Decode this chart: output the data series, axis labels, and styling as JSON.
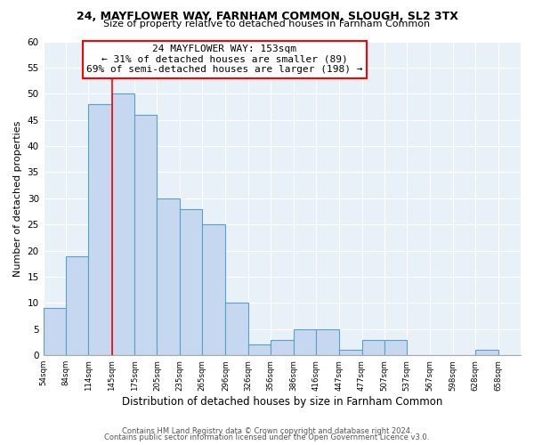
{
  "title1": "24, MAYFLOWER WAY, FARNHAM COMMON, SLOUGH, SL2 3TX",
  "title2": "Size of property relative to detached houses in Farnham Common",
  "xlabel": "Distribution of detached houses by size in Farnham Common",
  "ylabel": "Number of detached properties",
  "bin_labels": [
    "54sqm",
    "84sqm",
    "114sqm",
    "145sqm",
    "175sqm",
    "205sqm",
    "235sqm",
    "265sqm",
    "296sqm",
    "326sqm",
    "356sqm",
    "386sqm",
    "416sqm",
    "447sqm",
    "477sqm",
    "507sqm",
    "537sqm",
    "567sqm",
    "598sqm",
    "628sqm",
    "658sqm"
  ],
  "bar_values": [
    9,
    19,
    48,
    50,
    46,
    30,
    28,
    25,
    10,
    2,
    3,
    5,
    5,
    1,
    3,
    3,
    0,
    0,
    0,
    1,
    0
  ],
  "bar_color": "#c5d8f0",
  "bar_edge_color": "#5a9fc8",
  "property_line_label": "24 MAYFLOWER WAY: 153sqm",
  "annotation_line1": "← 31% of detached houses are smaller (89)",
  "annotation_line2": "69% of semi-detached houses are larger (198) →",
  "vline_color": "red",
  "ylim": [
    0,
    60
  ],
  "yticks": [
    0,
    5,
    10,
    15,
    20,
    25,
    30,
    35,
    40,
    45,
    50,
    55,
    60
  ],
  "footer1": "Contains HM Land Registry data © Crown copyright and database right 2024.",
  "footer2": "Contains public sector information licensed under the Open Government Licence v3.0.",
  "bin_edges": [
    54,
    84,
    114,
    145,
    175,
    205,
    235,
    265,
    296,
    326,
    356,
    386,
    416,
    447,
    477,
    507,
    537,
    567,
    598,
    628,
    658,
    688
  ]
}
